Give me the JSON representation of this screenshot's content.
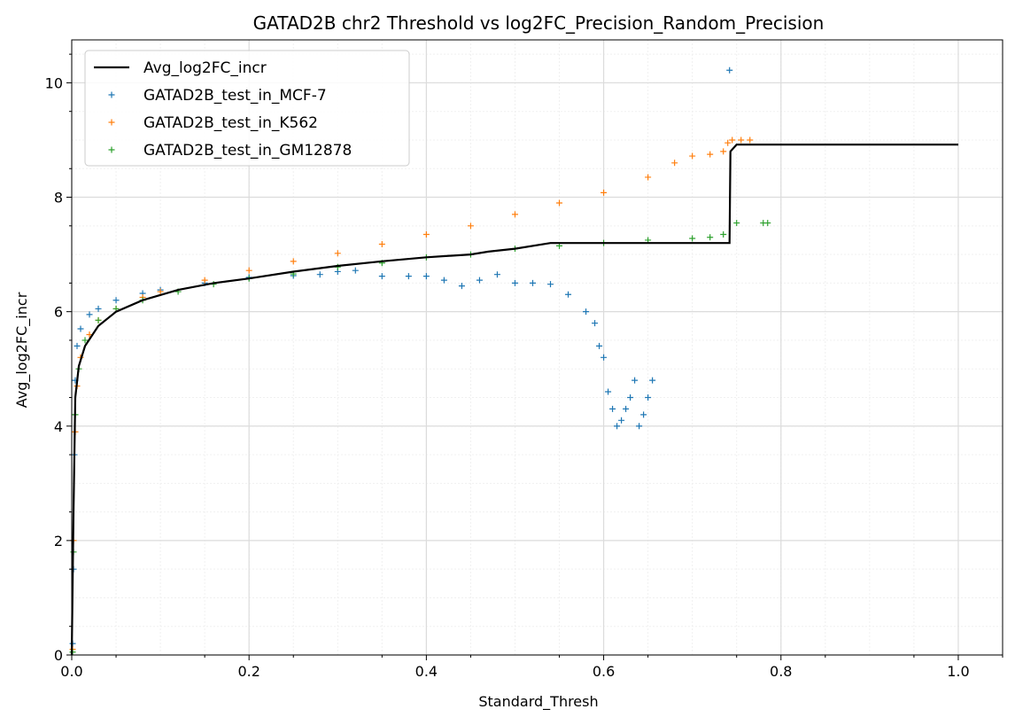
{
  "chart_data": {
    "type": "scatter",
    "title": "GATAD2B chr2 Threshold vs log2FC_Precision_Random_Precision",
    "xlabel": "Standard_Thresh",
    "ylabel": "Avg_log2FC_incr",
    "xlim": [
      0.0,
      1.05
    ],
    "ylim": [
      0.0,
      10.75
    ],
    "xticks": [
      "0.0",
      "0.2",
      "0.4",
      "0.6",
      "0.8",
      "1.0"
    ],
    "yticks": [
      "0",
      "2",
      "4",
      "6",
      "8",
      "10"
    ],
    "grid": true,
    "minor_grid": true,
    "legend_position": "top-left",
    "series": [
      {
        "name": "Avg_log2FC_incr",
        "kind": "line",
        "color": "#000000",
        "points": [
          [
            0.0,
            0.0
          ],
          [
            0.002,
            2.5
          ],
          [
            0.004,
            4.5
          ],
          [
            0.008,
            5.05
          ],
          [
            0.015,
            5.4
          ],
          [
            0.03,
            5.75
          ],
          [
            0.05,
            6.0
          ],
          [
            0.08,
            6.2
          ],
          [
            0.12,
            6.38
          ],
          [
            0.16,
            6.5
          ],
          [
            0.2,
            6.58
          ],
          [
            0.25,
            6.7
          ],
          [
            0.3,
            6.8
          ],
          [
            0.35,
            6.88
          ],
          [
            0.4,
            6.95
          ],
          [
            0.45,
            7.0
          ],
          [
            0.47,
            7.05
          ],
          [
            0.5,
            7.1
          ],
          [
            0.54,
            7.2
          ],
          [
            0.6,
            7.2
          ],
          [
            0.7,
            7.2
          ],
          [
            0.742,
            7.2
          ],
          [
            0.743,
            8.8
          ],
          [
            0.75,
            8.92
          ],
          [
            1.0,
            8.92
          ]
        ]
      },
      {
        "name": "GATAD2B_test_in_MCF-7",
        "kind": "scatter",
        "color": "#1f77b4",
        "points": [
          [
            0.001,
            0.2
          ],
          [
            0.002,
            1.5
          ],
          [
            0.003,
            3.5
          ],
          [
            0.004,
            4.8
          ],
          [
            0.006,
            5.4
          ],
          [
            0.01,
            5.7
          ],
          [
            0.02,
            5.95
          ],
          [
            0.03,
            6.05
          ],
          [
            0.05,
            6.2
          ],
          [
            0.08,
            6.32
          ],
          [
            0.1,
            6.38
          ],
          [
            0.15,
            6.5
          ],
          [
            0.2,
            6.6
          ],
          [
            0.25,
            6.63
          ],
          [
            0.28,
            6.65
          ],
          [
            0.3,
            6.7
          ],
          [
            0.32,
            6.72
          ],
          [
            0.35,
            6.62
          ],
          [
            0.38,
            6.62
          ],
          [
            0.4,
            6.62
          ],
          [
            0.42,
            6.55
          ],
          [
            0.44,
            6.45
          ],
          [
            0.46,
            6.55
          ],
          [
            0.48,
            6.65
          ],
          [
            0.5,
            6.5
          ],
          [
            0.52,
            6.5
          ],
          [
            0.54,
            6.48
          ],
          [
            0.56,
            6.3
          ],
          [
            0.58,
            6.0
          ],
          [
            0.59,
            5.8
          ],
          [
            0.595,
            5.4
          ],
          [
            0.6,
            5.2
          ],
          [
            0.605,
            4.6
          ],
          [
            0.61,
            4.3
          ],
          [
            0.615,
            4.0
          ],
          [
            0.62,
            4.1
          ],
          [
            0.625,
            4.3
          ],
          [
            0.63,
            4.5
          ],
          [
            0.635,
            4.8
          ],
          [
            0.64,
            4.0
          ],
          [
            0.645,
            4.2
          ],
          [
            0.65,
            4.5
          ],
          [
            0.655,
            4.8
          ],
          [
            0.742,
            10.22
          ]
        ]
      },
      {
        "name": "GATAD2B_test_in_K562",
        "kind": "scatter",
        "color": "#ff7f0e",
        "points": [
          [
            0.001,
            0.1
          ],
          [
            0.002,
            2.0
          ],
          [
            0.004,
            3.9
          ],
          [
            0.006,
            4.7
          ],
          [
            0.01,
            5.2
          ],
          [
            0.02,
            5.6
          ],
          [
            0.03,
            5.85
          ],
          [
            0.05,
            6.05
          ],
          [
            0.08,
            6.25
          ],
          [
            0.1,
            6.35
          ],
          [
            0.15,
            6.55
          ],
          [
            0.2,
            6.72
          ],
          [
            0.25,
            6.88
          ],
          [
            0.3,
            7.02
          ],
          [
            0.35,
            7.18
          ],
          [
            0.4,
            7.35
          ],
          [
            0.45,
            7.5
          ],
          [
            0.5,
            7.7
          ],
          [
            0.55,
            7.9
          ],
          [
            0.6,
            8.08
          ],
          [
            0.65,
            8.35
          ],
          [
            0.68,
            8.6
          ],
          [
            0.7,
            8.72
          ],
          [
            0.72,
            8.75
          ],
          [
            0.735,
            8.8
          ],
          [
            0.74,
            8.95
          ],
          [
            0.745,
            9.0
          ],
          [
            0.755,
            9.0
          ],
          [
            0.765,
            9.0
          ]
        ]
      },
      {
        "name": "GATAD2B_test_in_GM12878",
        "kind": "scatter",
        "color": "#2ca02c",
        "points": [
          [
            0.001,
            0.05
          ],
          [
            0.002,
            1.8
          ],
          [
            0.004,
            4.2
          ],
          [
            0.008,
            5.0
          ],
          [
            0.015,
            5.5
          ],
          [
            0.03,
            5.85
          ],
          [
            0.05,
            6.05
          ],
          [
            0.08,
            6.2
          ],
          [
            0.12,
            6.35
          ],
          [
            0.16,
            6.48
          ],
          [
            0.2,
            6.58
          ],
          [
            0.25,
            6.66
          ],
          [
            0.3,
            6.78
          ],
          [
            0.35,
            6.85
          ],
          [
            0.4,
            6.95
          ],
          [
            0.45,
            7.0
          ],
          [
            0.5,
            7.1
          ],
          [
            0.55,
            7.15
          ],
          [
            0.6,
            7.2
          ],
          [
            0.65,
            7.25
          ],
          [
            0.7,
            7.28
          ],
          [
            0.72,
            7.3
          ],
          [
            0.735,
            7.35
          ],
          [
            0.75,
            7.55
          ],
          [
            0.78,
            7.55
          ],
          [
            0.785,
            7.55
          ]
        ]
      }
    ]
  }
}
